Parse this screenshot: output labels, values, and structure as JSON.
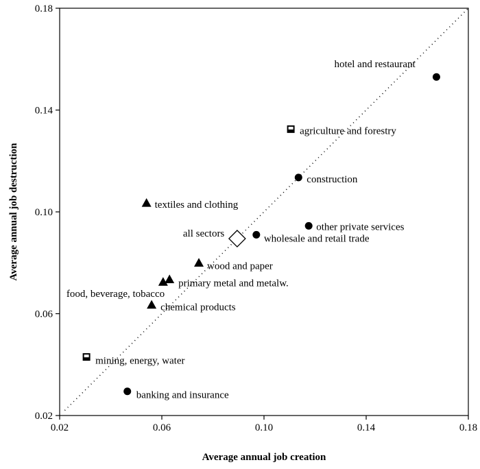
{
  "chart_data": {
    "type": "scatter",
    "title": "",
    "xlabel": "Average annual job creation",
    "ylabel": "Average annual job destruction",
    "xlim": [
      0.02,
      0.18
    ],
    "ylim": [
      0.02,
      0.18
    ],
    "xticks": [
      0.02,
      0.06,
      0.1,
      0.14,
      0.18
    ],
    "yticks": [
      0.02,
      0.06,
      0.1,
      0.14,
      0.18
    ],
    "xtick_labels": [
      "0.02",
      "0.06",
      "0.10",
      "0.14",
      "0.18"
    ],
    "ytick_labels": [
      "0.02",
      "0.06",
      "0.10",
      "0.14",
      "0.18"
    ],
    "grid": false,
    "reference_line": "45-degree diagonal",
    "points": [
      {
        "label": "hotel and restaurant",
        "x": 0.1675,
        "y": 0.153,
        "marker": "circle"
      },
      {
        "label": "agriculture and forestry",
        "x": 0.1105,
        "y": 0.1325,
        "marker": "square"
      },
      {
        "label": "construction",
        "x": 0.1135,
        "y": 0.1135,
        "marker": "circle"
      },
      {
        "label": "textiles and clothing",
        "x": 0.054,
        "y": 0.1035,
        "marker": "triangle"
      },
      {
        "label": "other private services",
        "x": 0.1175,
        "y": 0.0945,
        "marker": "circle"
      },
      {
        "label": "wholesale and retail trade",
        "x": 0.097,
        "y": 0.091,
        "marker": "circle"
      },
      {
        "label": "all sectors",
        "x": 0.0895,
        "y": 0.0895,
        "marker": "diamond"
      },
      {
        "label": "wood and paper",
        "x": 0.0745,
        "y": 0.08,
        "marker": "triangle"
      },
      {
        "label": "primary metal and metalw.",
        "x": 0.063,
        "y": 0.0735,
        "marker": "triangle"
      },
      {
        "label": "food, beverage, tobacco",
        "x": 0.0605,
        "y": 0.0725,
        "marker": "triangle"
      },
      {
        "label": "chemical products",
        "x": 0.056,
        "y": 0.0635,
        "marker": "triangle"
      },
      {
        "label": "mining, energy, water",
        "x": 0.0305,
        "y": 0.043,
        "marker": "square"
      },
      {
        "label": "banking and insurance",
        "x": 0.0465,
        "y": 0.0295,
        "marker": "circle"
      }
    ]
  }
}
